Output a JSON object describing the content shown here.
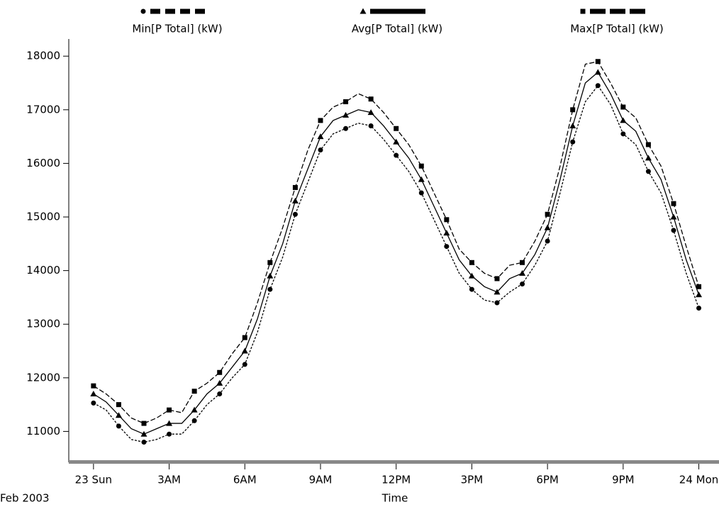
{
  "chart_data": {
    "type": "line",
    "x_label": "Time",
    "date_label": "Feb 2003",
    "x": [
      0,
      0.5,
      1,
      1.5,
      2,
      2.5,
      3,
      3.5,
      4,
      4.5,
      5,
      5.5,
      6,
      6.5,
      7,
      7.5,
      8,
      8.5,
      9,
      9.5,
      10,
      10.5,
      11,
      11.5,
      12,
      12.5,
      13,
      13.5,
      14,
      14.5,
      15,
      15.5,
      16,
      16.5,
      17,
      17.5,
      18,
      18.5,
      19,
      19.5,
      20,
      20.5,
      21,
      21.5,
      22,
      22.5,
      23,
      23.5,
      24
    ],
    "xlim": [
      -0.98,
      24.8
    ],
    "xticks": [
      {
        "value": 0,
        "label": "23 Sun"
      },
      {
        "value": 3,
        "label": "3AM"
      },
      {
        "value": 6,
        "label": "6AM"
      },
      {
        "value": 9,
        "label": "9AM"
      },
      {
        "value": 12,
        "label": "12PM"
      },
      {
        "value": 15,
        "label": "3PM"
      },
      {
        "value": 18,
        "label": "6PM"
      },
      {
        "value": 21,
        "label": "9PM"
      },
      {
        "value": 24,
        "label": "24 Mon"
      }
    ],
    "ylim": [
      10450,
      18320
    ],
    "yticks": [
      11000,
      12000,
      13000,
      14000,
      15000,
      16000,
      17000,
      18000
    ],
    "series": [
      {
        "name": "Min[P Total] (kW)",
        "color": "#000000",
        "marker": "circle",
        "dash": "dotted",
        "values": [
          11530,
          11400,
          11100,
          10850,
          10800,
          10850,
          10950,
          10950,
          11200,
          11500,
          11700,
          12000,
          12250,
          12850,
          13650,
          14250,
          15050,
          15650,
          16250,
          16550,
          16650,
          16750,
          16700,
          16450,
          16150,
          15850,
          15450,
          14950,
          14450,
          13950,
          13650,
          13450,
          13400,
          13600,
          13750,
          14100,
          14550,
          15450,
          16400,
          17150,
          17450,
          17100,
          16550,
          16350,
          15850,
          15450,
          14750,
          13950,
          13300
        ]
      },
      {
        "name": "Avg[P Total] (kW)",
        "color": "#000000",
        "marker": "triangle",
        "dash": "solid",
        "values": [
          11700,
          11550,
          11300,
          11050,
          10950,
          11050,
          11150,
          11150,
          11400,
          11700,
          11900,
          12200,
          12500,
          13100,
          13900,
          14500,
          15300,
          15900,
          16500,
          16800,
          16900,
          17000,
          16950,
          16700,
          16400,
          16100,
          15700,
          15200,
          14700,
          14200,
          13900,
          13700,
          13600,
          13850,
          13950,
          14300,
          14800,
          15700,
          16700,
          17500,
          17700,
          17300,
          16800,
          16600,
          16100,
          15700,
          15000,
          14200,
          13550
        ]
      },
      {
        "name": "Max[P Total] (kW)",
        "color": "#000000",
        "marker": "square",
        "dash": "dashed",
        "values": [
          11850,
          11700,
          11500,
          11250,
          11150,
          11250,
          11400,
          11350,
          11750,
          11900,
          12100,
          12450,
          12750,
          13400,
          14150,
          14800,
          15550,
          16250,
          16800,
          17050,
          17150,
          17300,
          17200,
          16950,
          16650,
          16350,
          15950,
          15450,
          14950,
          14400,
          14150,
          13950,
          13850,
          14100,
          14150,
          14550,
          15050,
          15950,
          17000,
          17850,
          17900,
          17500,
          17050,
          16850,
          16350,
          15950,
          15250,
          14450,
          13700
        ]
      }
    ]
  }
}
